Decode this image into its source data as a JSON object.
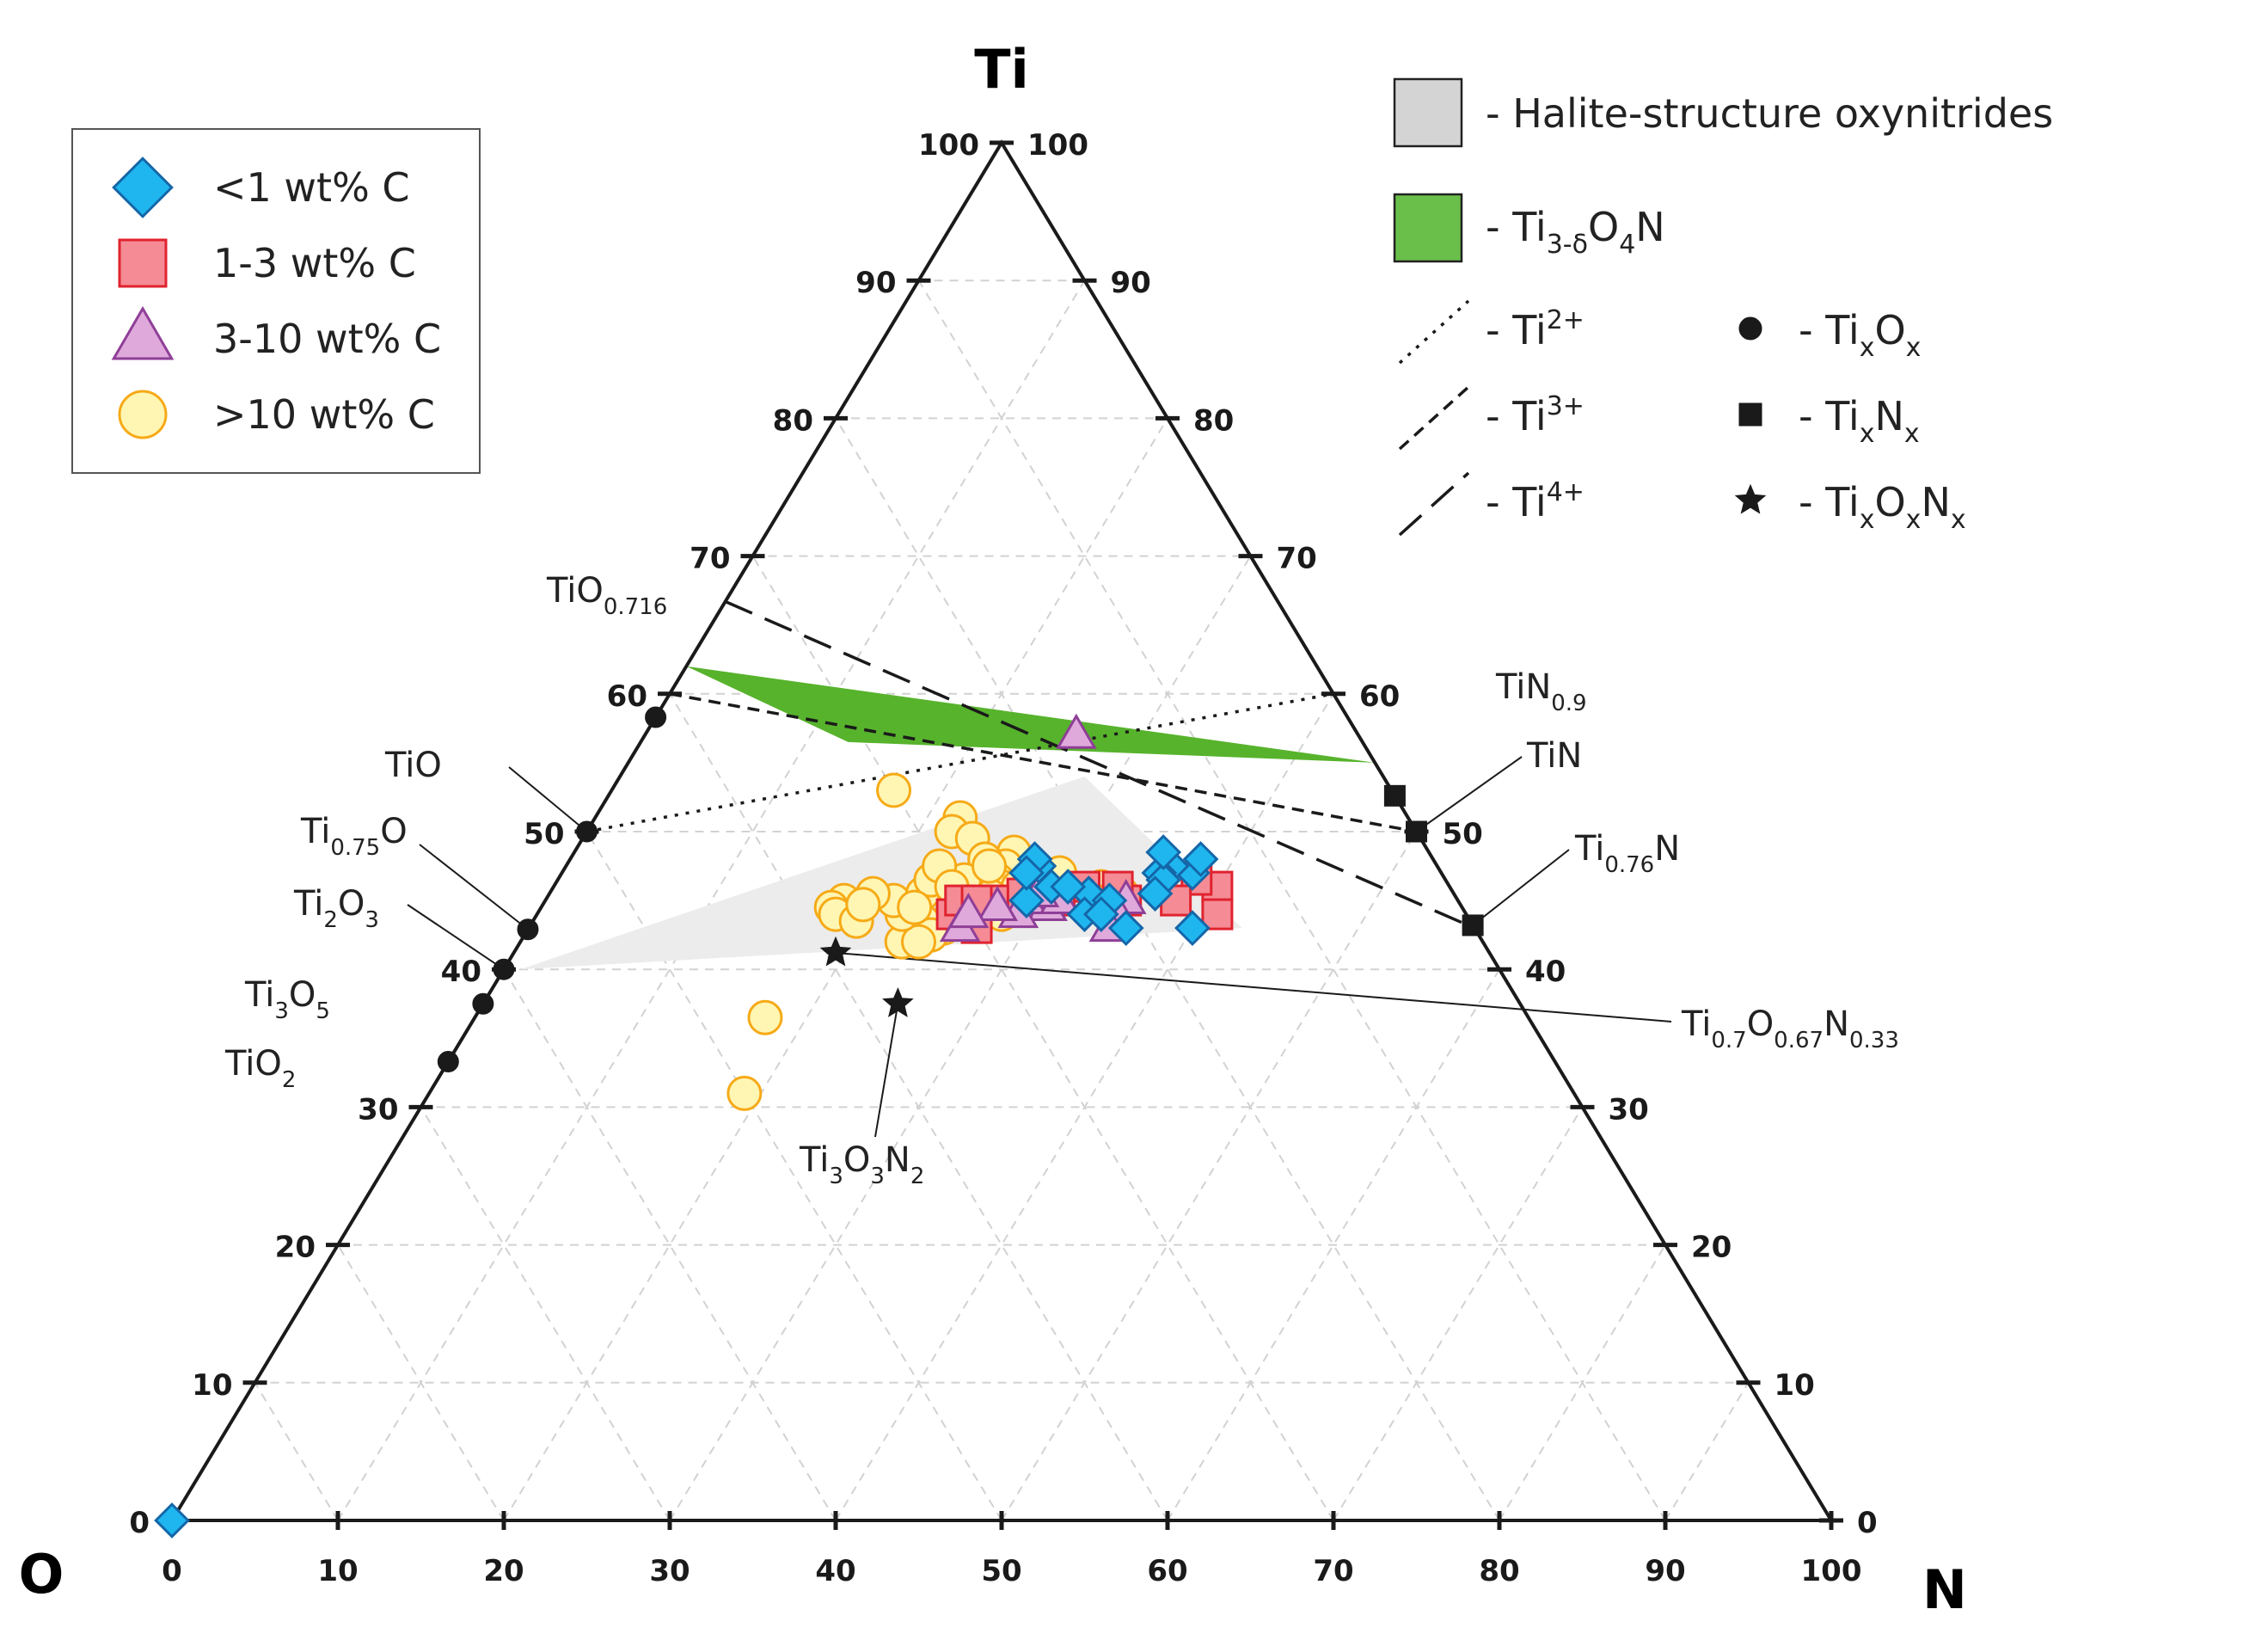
{
  "chart_data": {
    "type": "ternary-scatter",
    "axes": {
      "top": "Ti",
      "left": "O",
      "right": "N",
      "unit": "at%"
    },
    "ticks": {
      "bottom": [
        "0",
        "10",
        "20",
        "30",
        "40",
        "50",
        "60",
        "70",
        "80",
        "90",
        "100"
      ],
      "left": [
        "0",
        "10",
        "20",
        "30",
        "40",
        "50",
        "60",
        "70",
        "80",
        "90",
        "100"
      ],
      "right": [
        "100",
        "90",
        "80",
        "70",
        "60",
        "50",
        "40",
        "30",
        "20",
        "10",
        "0"
      ]
    },
    "grid": true,
    "legend_left": [
      {
        "key": "lt1",
        "marker": "diamond",
        "fill": "#1fb6ef",
        "stroke": "#1566a8",
        "label": "<1 wt% C"
      },
      {
        "key": "c13",
        "marker": "square",
        "fill": "#f48b95",
        "stroke": "#e0232f",
        "label": "1-3 wt% C"
      },
      {
        "key": "c310",
        "marker": "triangle",
        "fill": "#dfa9db",
        "stroke": "#8f3f97",
        "label": "3-10 wt% C"
      },
      {
        "key": "gt10",
        "marker": "circle",
        "fill": "#fff6b3",
        "stroke": "#f6aa17",
        "label": ">10 wt% C"
      }
    ],
    "legend_right": {
      "areas": [
        {
          "key": "halite",
          "fill": "#d4d4d4",
          "text": "- Halite-structure oxynitrides"
        },
        {
          "key": "green",
          "fill": "#6abf4b",
          "text_main": "- Ti",
          "text_sub": "3-δ",
          "text_main2": "O",
          "text_sub2": "4",
          "text_main3": "N"
        }
      ],
      "lines": [
        {
          "key": "ti2",
          "dash": "4 9",
          "text": "- Ti",
          "sup": "2+"
        },
        {
          "key": "ti3",
          "dash": "14 9",
          "text": "- Ti",
          "sup": "3+"
        },
        {
          "key": "ti4",
          "dash": "34 16",
          "text": "- Ti",
          "sup": "4+"
        }
      ],
      "symbols": [
        {
          "key": "dot",
          "shape": "circle",
          "parts": [
            "- Ti",
            "x",
            "O",
            "x"
          ]
        },
        {
          "key": "sq",
          "shape": "square",
          "parts": [
            "- Ti",
            "x",
            "N",
            "x"
          ]
        },
        {
          "key": "star",
          "shape": "star",
          "parts": [
            "- Ti",
            "x",
            "O",
            "x",
            "N",
            "x"
          ]
        }
      ]
    },
    "regions": {
      "halite": [
        [
          40,
          59,
          1
        ],
        [
          54,
          18,
          28
        ],
        [
          43,
          14,
          43
        ]
      ],
      "green_ti3o4n": [
        [
          62,
          38,
          0
        ],
        [
          56.5,
          31,
          12.5
        ],
        [
          55,
          0,
          45
        ]
      ]
    },
    "lines": [
      {
        "type": "Ti2+",
        "from": [
          50,
          50,
          0
        ],
        "to": [
          60,
          0,
          40
        ]
      },
      {
        "type": "Ti3+",
        "from": [
          60,
          40,
          0
        ],
        "to": [
          50,
          0,
          50
        ]
      },
      {
        "type": "Ti4+",
        "from": [
          66.7,
          33.3,
          0
        ],
        "to": [
          43,
          0,
          57
        ]
      }
    ],
    "compounds": [
      {
        "id": "tio0716",
        "marker": "circle",
        "ti": 58.3,
        "n": 0,
        "parts": [
          "TiO",
          "0.716"
        ]
      },
      {
        "id": "tio",
        "marker": "circle",
        "ti": 50,
        "n": 0,
        "parts": [
          "TiO"
        ]
      },
      {
        "id": "ti075o",
        "marker": "circle",
        "ti": 42.9,
        "n": 0,
        "parts": [
          "Ti",
          "0.75",
          "O"
        ]
      },
      {
        "id": "ti2o3",
        "marker": "circle",
        "ti": 40,
        "n": 0,
        "parts": [
          "Ti",
          "2",
          "O",
          "3"
        ]
      },
      {
        "id": "ti3o5",
        "marker": "circle",
        "ti": 37.5,
        "n": 0,
        "parts": [
          "Ti",
          "3",
          "O",
          "5"
        ]
      },
      {
        "id": "tio2",
        "marker": "circle",
        "ti": 33.3,
        "n": 0,
        "parts": [
          "TiO",
          "2"
        ]
      },
      {
        "id": "tin09",
        "marker": "square",
        "ti": 52.6,
        "n": 47.4,
        "parts": [
          "TiN",
          "0.9"
        ]
      },
      {
        "id": "tin",
        "marker": "square",
        "ti": 50,
        "n": 50,
        "parts": [
          "TiN"
        ]
      },
      {
        "id": "ti076n",
        "marker": "square",
        "ti": 43.2,
        "n": 56.8,
        "parts": [
          "Ti",
          "0.76",
          "N"
        ]
      },
      {
        "id": "ti07",
        "marker": "star",
        "ti": 41.2,
        "n": 19.4,
        "parts": [
          "Ti",
          "0.7",
          "O",
          "0.67",
          "N",
          "0.33"
        ]
      },
      {
        "id": "ti3o3n2",
        "marker": "star",
        "ti": 37.5,
        "n": 25,
        "parts": [
          "Ti",
          "3",
          "O",
          "3",
          "N",
          "2"
        ]
      }
    ],
    "series": [
      {
        "key": "lt1",
        "name": "<1 wt% C",
        "points": [
          [
            0,
            100,
            0
          ],
          [
            47,
            15,
            38
          ],
          [
            48,
            14,
            38
          ],
          [
            47.5,
            16,
            36.5
          ],
          [
            47,
            17,
            36
          ],
          [
            46.5,
            17,
            36.5
          ],
          [
            45.5,
            18,
            36.5
          ],
          [
            43,
            21,
            36
          ],
          [
            43,
            17,
            40
          ],
          [
            45.5,
            22,
            32.5
          ],
          [
            45,
            26,
            29
          ],
          [
            47.5,
            24,
            28.5
          ],
          [
            48,
            24,
            28
          ],
          [
            47,
            25,
            28
          ],
          [
            46,
            24,
            30
          ],
          [
            44,
            23,
            33
          ],
          [
            45,
            21,
            34
          ],
          [
            44,
            22,
            34
          ],
          [
            46,
            23,
            31
          ],
          [
            48.5,
            16,
            35.5
          ]
        ]
      },
      {
        "key": "c13",
        "name": "1-3 wt% C",
        "points": [
          [
            46,
            14,
            40
          ],
          [
            46.5,
            15,
            38.5
          ],
          [
            44,
            15,
            41
          ],
          [
            45,
            17,
            38
          ],
          [
            45,
            20,
            35
          ],
          [
            46,
            22,
            32
          ],
          [
            45.5,
            26,
            28.5
          ],
          [
            45,
            28,
            27
          ],
          [
            44,
            31,
            25
          ],
          [
            43,
            30,
            27
          ],
          [
            45,
            30,
            25
          ],
          [
            46,
            20,
            34
          ],
          [
            45,
            29,
            26
          ],
          [
            45,
            24,
            31
          ]
        ]
      },
      {
        "key": "c310",
        "name": "3-10 wt% C",
        "points": [
          [
            57,
            17,
            26
          ],
          [
            45,
            20,
            35
          ],
          [
            44,
            21,
            35
          ],
          [
            45,
            22,
            33
          ],
          [
            43,
            22,
            35
          ],
          [
            44.5,
            25,
            30.5
          ],
          [
            45,
            26,
            29
          ],
          [
            44,
            27,
            29
          ],
          [
            44.5,
            28,
            27.5
          ],
          [
            43,
            31,
            26
          ],
          [
            44,
            30,
            26
          ],
          [
            45,
            24,
            31
          ],
          [
            45.5,
            25,
            29.5
          ]
        ]
      },
      {
        "key": "gt10",
        "name": ">10 wt% C",
        "points": [
          [
            53,
            30,
            17
          ],
          [
            51,
            27,
            22
          ],
          [
            50,
            28,
            22
          ],
          [
            49.5,
            27,
            23.5
          ],
          [
            48,
            27,
            25
          ],
          [
            48.5,
            25,
            26.5
          ],
          [
            47,
            25,
            28
          ],
          [
            47.5,
            26,
            26.5
          ],
          [
            46.5,
            27,
            26.5
          ],
          [
            46,
            27,
            27
          ],
          [
            45.5,
            29,
            25.5
          ],
          [
            45,
            30,
            25
          ],
          [
            44.5,
            30,
            25.5
          ],
          [
            44,
            31,
            25
          ],
          [
            43,
            32,
            25
          ],
          [
            43.5,
            33,
            23.5
          ],
          [
            42.5,
            33,
            24.5
          ],
          [
            42,
            35,
            23
          ],
          [
            42,
            34,
            24
          ],
          [
            44,
            34,
            22
          ],
          [
            45,
            34,
            21
          ],
          [
            45.5,
            35,
            19.5
          ],
          [
            45,
            37,
            18
          ],
          [
            44.5,
            38,
            17.5
          ],
          [
            44,
            38,
            18
          ],
          [
            43.5,
            37,
            19.5
          ],
          [
            45,
            29,
            26
          ],
          [
            44,
            28,
            28
          ],
          [
            46,
            26,
            28
          ],
          [
            47,
            23,
            30
          ],
          [
            46,
            21,
            33
          ],
          [
            45,
            21,
            34
          ],
          [
            48,
            27,
            25
          ],
          [
            45.5,
            32,
            22.5
          ],
          [
            46.5,
            31,
            22.5
          ],
          [
            44.5,
            33,
            22.5
          ],
          [
            44.7,
            36,
            19.3
          ],
          [
            45.3,
            28,
            26.7
          ],
          [
            46.5,
            29,
            24.5
          ],
          [
            47.5,
            30,
            22.5
          ],
          [
            36.5,
            46,
            17.5
          ],
          [
            31,
            50,
            19
          ],
          [
            45.5,
            20,
            34.5
          ],
          [
            47.5,
            27,
            25.5
          ],
          [
            46,
            30,
            24
          ]
        ]
      }
    ]
  }
}
